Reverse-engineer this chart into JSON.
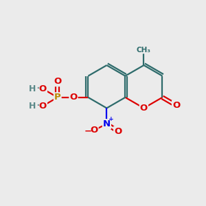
{
  "background_color": "#ebebeb",
  "bond_color": "#2d6b6b",
  "bond_width": 1.6,
  "atom_colors": {
    "O": "#dd0000",
    "N": "#0000ee",
    "P": "#bb8800",
    "H": "#5a8888",
    "C": "#2d6b6b"
  },
  "font_size": 9.5,
  "fig_size": [
    3.0,
    3.0
  ],
  "dpi": 100
}
